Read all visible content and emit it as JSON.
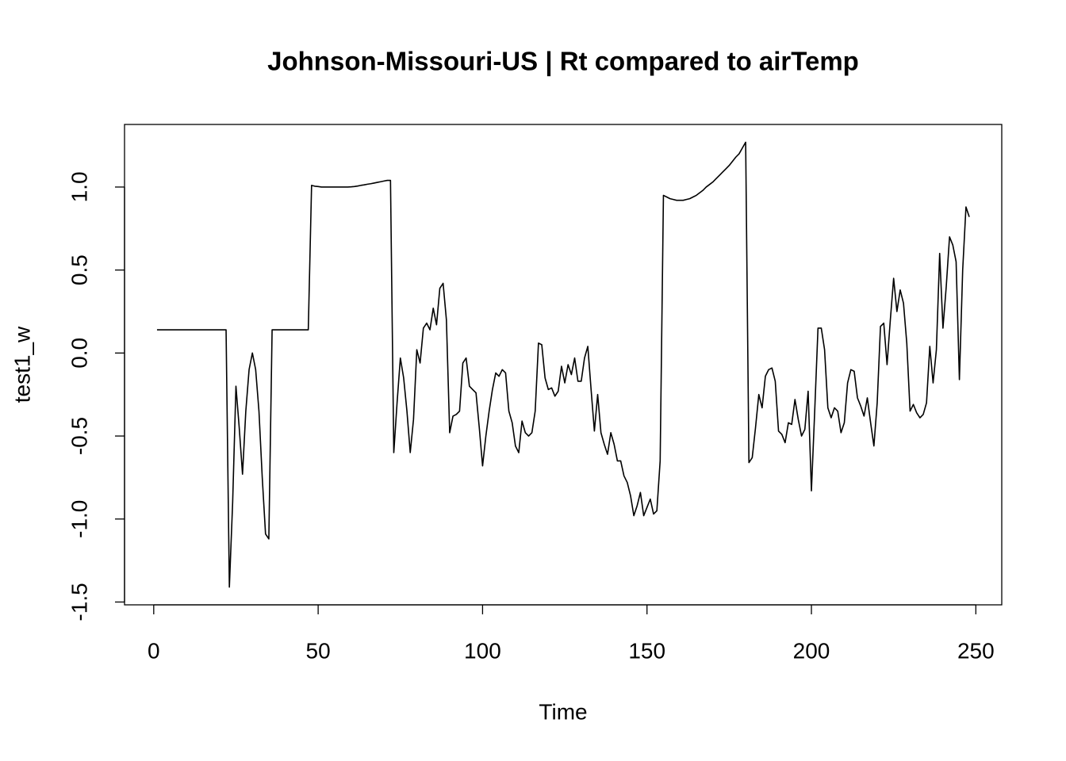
{
  "chart_data": {
    "type": "line",
    "title": "Johnson-Missouri-US | Rt compared to airTemp",
    "xlabel": "Time",
    "ylabel": "test1_w",
    "color": "#000000",
    "x": [
      1,
      2,
      3,
      4,
      5,
      6,
      7,
      8,
      9,
      10,
      11,
      12,
      13,
      14,
      15,
      16,
      17,
      18,
      19,
      20,
      21,
      22,
      23,
      24,
      25,
      26,
      27,
      28,
      29,
      30,
      31,
      32,
      33,
      34,
      35,
      36,
      37,
      38,
      39,
      40,
      41,
      42,
      43,
      44,
      45,
      46,
      47,
      48,
      49,
      50,
      51,
      52,
      53,
      54,
      55,
      56,
      57,
      58,
      59,
      60,
      61,
      62,
      63,
      64,
      65,
      66,
      67,
      68,
      69,
      70,
      71,
      72,
      73,
      74,
      75,
      76,
      77,
      78,
      79,
      80,
      81,
      82,
      83,
      84,
      85,
      86,
      87,
      88,
      89,
      90,
      91,
      92,
      93,
      94,
      95,
      96,
      97,
      98,
      99,
      100,
      101,
      102,
      103,
      104,
      105,
      106,
      107,
      108,
      109,
      110,
      111,
      112,
      113,
      114,
      115,
      116,
      117,
      118,
      119,
      120,
      121,
      122,
      123,
      124,
      125,
      126,
      127,
      128,
      129,
      130,
      131,
      132,
      133,
      134,
      135,
      136,
      137,
      138,
      139,
      140,
      141,
      142,
      143,
      144,
      145,
      146,
      147,
      148,
      149,
      150,
      151,
      152,
      153,
      154,
      155,
      156,
      157,
      158,
      159,
      160,
      161,
      162,
      163,
      164,
      165,
      166,
      167,
      168,
      169,
      170,
      171,
      172,
      173,
      174,
      175,
      176,
      177,
      178,
      179,
      180,
      181,
      182,
      183,
      184,
      185,
      186,
      187,
      188,
      189,
      190,
      191,
      192,
      193,
      194,
      195,
      196,
      197,
      198,
      199,
      200,
      201,
      202,
      203,
      204,
      205,
      206,
      207,
      208,
      209,
      210,
      211,
      212,
      213,
      214,
      215,
      216,
      217,
      218,
      219,
      220,
      221,
      222,
      223,
      224,
      225,
      226,
      227,
      228,
      229,
      230,
      231,
      232,
      233,
      234,
      235,
      236,
      237,
      238,
      239,
      240,
      241,
      242,
      243,
      244,
      245,
      246,
      247,
      248
    ],
    "values": [
      0.14,
      0.14,
      0.14,
      0.14,
      0.14,
      0.14,
      0.14,
      0.14,
      0.14,
      0.14,
      0.14,
      0.14,
      0.14,
      0.14,
      0.14,
      0.14,
      0.14,
      0.14,
      0.14,
      0.14,
      0.14,
      0.14,
      -1.41,
      -0.9,
      -0.2,
      -0.45,
      -0.73,
      -0.35,
      -0.1,
      0.0,
      -0.1,
      -0.35,
      -0.75,
      -1.09,
      -1.12,
      0.14,
      0.14,
      0.14,
      0.14,
      0.14,
      0.14,
      0.14,
      0.14,
      0.14,
      0.14,
      0.14,
      0.14,
      1.01,
      1.005,
      1.003,
      1.0,
      1.0,
      1.0,
      1.0,
      1.0,
      1.0,
      1.0,
      1.0,
      1.0,
      1.001,
      1.003,
      1.006,
      1.01,
      1.013,
      1.017,
      1.02,
      1.024,
      1.028,
      1.032,
      1.036,
      1.04,
      1.04,
      -0.6,
      -0.3,
      -0.03,
      -0.15,
      -0.35,
      -0.6,
      -0.4,
      0.02,
      -0.06,
      0.15,
      0.18,
      0.14,
      0.27,
      0.17,
      0.39,
      0.42,
      0.2,
      -0.48,
      -0.38,
      -0.37,
      -0.35,
      -0.06,
      -0.03,
      -0.2,
      -0.22,
      -0.24,
      -0.45,
      -0.68,
      -0.5,
      -0.35,
      -0.22,
      -0.12,
      -0.14,
      -0.1,
      -0.12,
      -0.35,
      -0.42,
      -0.56,
      -0.6,
      -0.41,
      -0.48,
      -0.5,
      -0.48,
      -0.35,
      0.06,
      0.05,
      -0.15,
      -0.22,
      -0.21,
      -0.26,
      -0.23,
      -0.08,
      -0.18,
      -0.07,
      -0.13,
      -0.03,
      -0.17,
      -0.17,
      -0.03,
      0.04,
      -0.22,
      -0.47,
      -0.25,
      -0.48,
      -0.55,
      -0.61,
      -0.48,
      -0.55,
      -0.65,
      -0.65,
      -0.74,
      -0.78,
      -0.86,
      -0.98,
      -0.92,
      -0.84,
      -0.98,
      -0.93,
      -0.88,
      -0.97,
      -0.95,
      -0.65,
      0.95,
      0.94,
      0.93,
      0.925,
      0.92,
      0.92,
      0.92,
      0.925,
      0.93,
      0.94,
      0.95,
      0.965,
      0.98,
      1.0,
      1.015,
      1.03,
      1.05,
      1.07,
      1.09,
      1.11,
      1.13,
      1.155,
      1.18,
      1.2,
      1.235,
      1.27,
      -0.66,
      -0.63,
      -0.45,
      -0.25,
      -0.33,
      -0.14,
      -0.1,
      -0.09,
      -0.17,
      -0.47,
      -0.49,
      -0.54,
      -0.42,
      -0.43,
      -0.28,
      -0.4,
      -0.5,
      -0.46,
      -0.23,
      -0.83,
      -0.35,
      0.15,
      0.15,
      0.02,
      -0.33,
      -0.39,
      -0.33,
      -0.35,
      -0.48,
      -0.42,
      -0.18,
      -0.1,
      -0.11,
      -0.27,
      -0.32,
      -0.38,
      -0.27,
      -0.42,
      -0.56,
      -0.3,
      0.16,
      0.18,
      -0.07,
      0.2,
      0.45,
      0.25,
      0.38,
      0.3,
      0.06,
      -0.35,
      -0.31,
      -0.36,
      -0.39,
      -0.37,
      -0.3,
      0.04,
      -0.18,
      0.02,
      0.6,
      0.15,
      0.4,
      0.7,
      0.65,
      0.55,
      -0.16,
      0.5,
      0.88,
      0.82
    ],
    "xlim": [
      -8.88,
      257.88
    ],
    "xticks": [
      0,
      50,
      100,
      150,
      200,
      250
    ],
    "ylim": [
      -1.517,
      1.377
    ],
    "yticks": [
      -1.5,
      {
        "value": -1,
        "label": "-1.0"
      },
      -0.5,
      {
        "value": 0,
        "label": "0.0"
      },
      0.5,
      {
        "value": 1,
        "label": "1.0"
      }
    ]
  }
}
